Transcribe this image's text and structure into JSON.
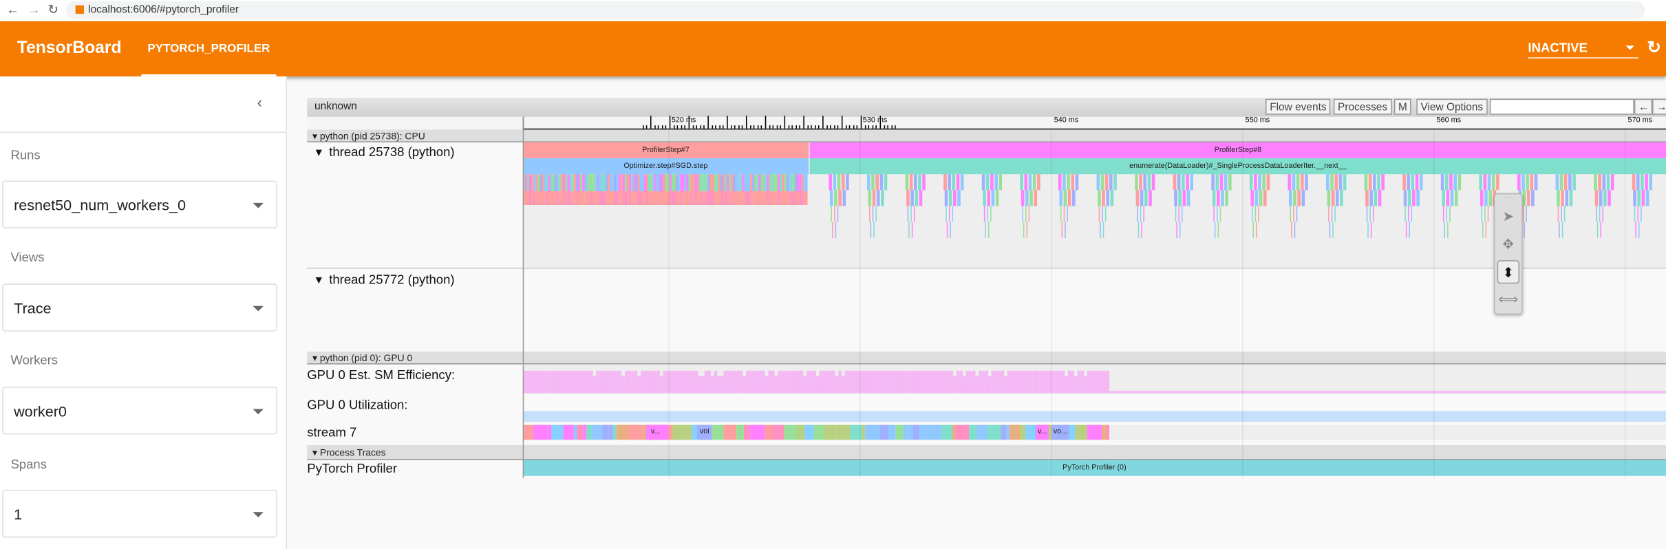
{
  "browser": {
    "url": "localhost:6006/#pytorch_profiler"
  },
  "header": {
    "title": "TensorBoard",
    "tab": "PYTORCH_PROFILER",
    "status_select": "INACTIVE"
  },
  "sidebar": {
    "sections": [
      {
        "label": "Runs",
        "value": "resnet50_num_workers_0"
      },
      {
        "label": "Views",
        "value": "Trace"
      },
      {
        "label": "Workers",
        "value": "worker0"
      },
      {
        "label": "Spans",
        "value": "1"
      }
    ]
  },
  "trace": {
    "title": "unknown",
    "buttons": {
      "flow": "Flow events",
      "processes": "Processes",
      "m": "M",
      "view_options": "View Options",
      "prev": "←",
      "next": "→"
    },
    "search_value": "",
    "ruler_ticks": [
      "520 ms",
      "530 ms",
      "540 ms",
      "550 ms",
      "560 ms",
      "570 ms"
    ],
    "processes": [
      {
        "header": "python (pid 25738): CPU",
        "rows": [
          "thread 25738 (python)",
          "thread 25772 (python)"
        ]
      },
      {
        "header": "python (pid 0): GPU 0",
        "rows": [
          "GPU 0 Est. SM Efficiency:",
          "GPU 0 Utilization:",
          "stream 7"
        ]
      },
      {
        "header": "Process Traces",
        "rows": [
          "PyTorch Profiler"
        ]
      }
    ],
    "events": {
      "step7": "ProfilerStep#7",
      "step8": "ProfilerStep#8",
      "optimizer": "Optimizer.step#SGD.step",
      "enumerate": "enumerate(DataLoader)#_SingleProcessDataLoaderIter.__next__",
      "stream_labels": [
        "v...",
        "voi",
        "v...",
        "vo..."
      ],
      "pytorch_profiler": "PyTorch Profiler (0)"
    },
    "colors": {
      "step7": "#ff9e9e",
      "step8": "#ff80ff",
      "optimizer": "#90c8ff",
      "enumerate": "#80dfcc",
      "sm_efficiency": "#f5b8f5",
      "utilization": "#c4e0fb",
      "profiler": "#80d8de",
      "header_orange": "#f57c00"
    }
  }
}
